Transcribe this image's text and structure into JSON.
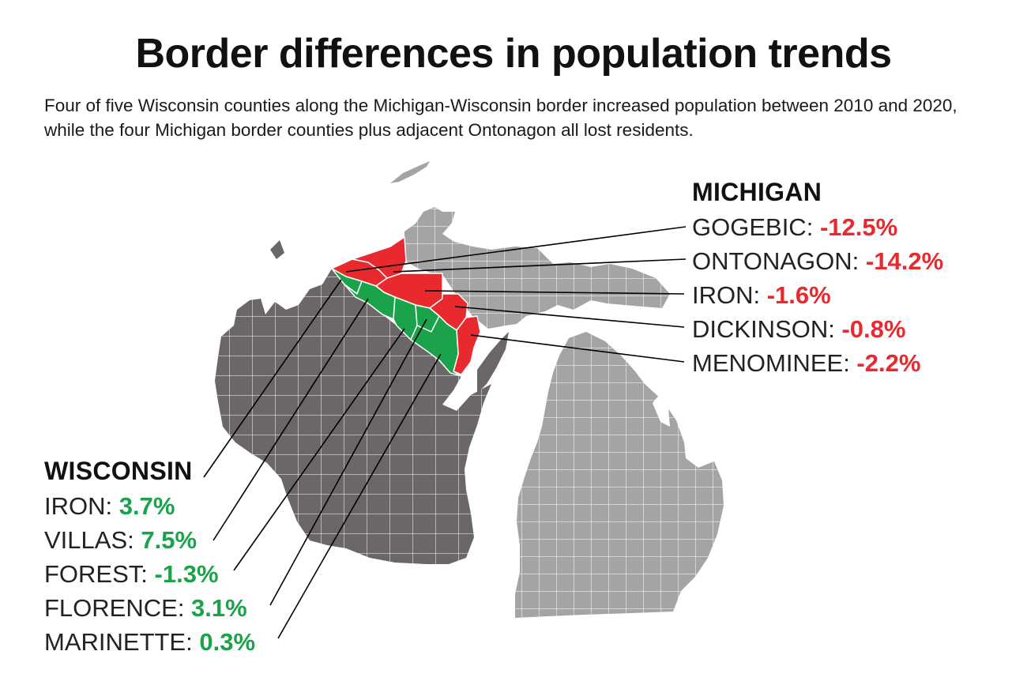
{
  "title": "Border differences in population trends",
  "subtitle": "Four of five Wisconsin counties along the Michigan-Wisconsin border increased population between 2010 and 2020, while the four Michigan border counties plus adjacent Ontonagon all lost residents.",
  "colors": {
    "increase": "#1aa34a",
    "decrease": "#e8292d",
    "wisconsin": "#6b6668",
    "michigan": "#a4a4a4",
    "county_border": "#ffffff",
    "leader_line": "#000000"
  },
  "michigan": {
    "heading": "MICHIGAN",
    "counties": [
      {
        "name": "GOGEBIC",
        "sep": ": ",
        "change": "-12.5%"
      },
      {
        "name": "ONTONAGON",
        "sep": ": ",
        "change": "-14.2%"
      },
      {
        "name": "IRON",
        "sep": ": ",
        "change": "-1.6%"
      },
      {
        "name": "DICKINSON",
        "sep": ": ",
        "change": "-0.8%"
      },
      {
        "name": "MENOMINEE",
        "sep": ": ",
        "change": "-2.2%"
      }
    ]
  },
  "wisconsin": {
    "heading": "WISCONSIN",
    "counties": [
      {
        "name": "IRON",
        "sep": ": ",
        "change": "3.7%"
      },
      {
        "name": "VILLAS",
        "sep": ": ",
        "change": "7.5%"
      },
      {
        "name": "FOREST",
        "sep": ": ",
        "change": "-1.3%"
      },
      {
        "name": "FLORENCE",
        "sep": ": ",
        "change": "3.1%"
      },
      {
        "name": "MARINETTE",
        "sep": ": ",
        "change": "0.3%"
      }
    ]
  }
}
